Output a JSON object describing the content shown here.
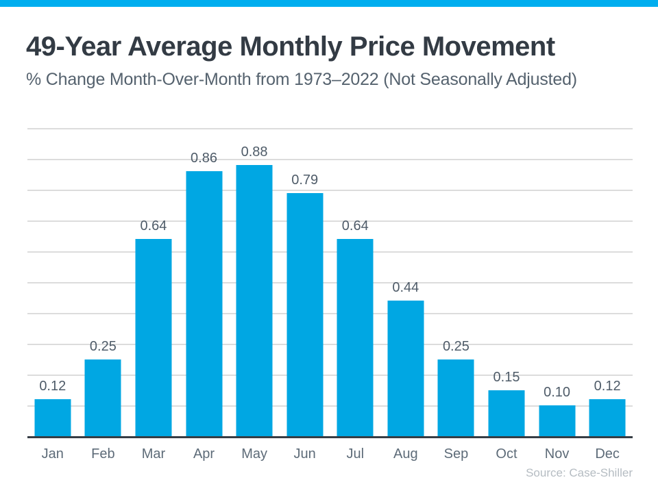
{
  "colors": {
    "accent_bar": "#00AEEF",
    "bar": "#00A7E3",
    "title_text": "#333B44",
    "subtitle_text": "#55626E",
    "value_label_text": "#4E5B68",
    "month_label_text": "#5D6B78",
    "gridline": "#DCDCDC",
    "axis_line": "#363D44",
    "source_text": "#B5BCC2"
  },
  "footer": {
    "source": "Source: Case-Shiller"
  },
  "chart_data": {
    "type": "bar",
    "title": "49-Year Average Monthly Price Movement",
    "subtitle": "% Change Month-Over-Month from 1973–2022 (Not Seasonally Adjusted)",
    "categories": [
      "Jan",
      "Feb",
      "Mar",
      "Apr",
      "May",
      "Jun",
      "Jul",
      "Aug",
      "Sep",
      "Oct",
      "Nov",
      "Dec"
    ],
    "values": [
      0.12,
      0.25,
      0.64,
      0.86,
      0.88,
      0.79,
      0.64,
      0.44,
      0.25,
      0.15,
      0.1,
      0.12
    ],
    "value_labels": [
      "0.12",
      "0.25",
      "0.64",
      "0.86",
      "0.88",
      "0.79",
      "0.64",
      "0.44",
      "0.25",
      "0.15",
      "0.10",
      "0.12"
    ],
    "xlabel": "",
    "ylabel": "",
    "ylim": [
      0,
      1.0
    ],
    "gridline_step": 0.1,
    "grid": "horizontal",
    "legend": "none"
  }
}
